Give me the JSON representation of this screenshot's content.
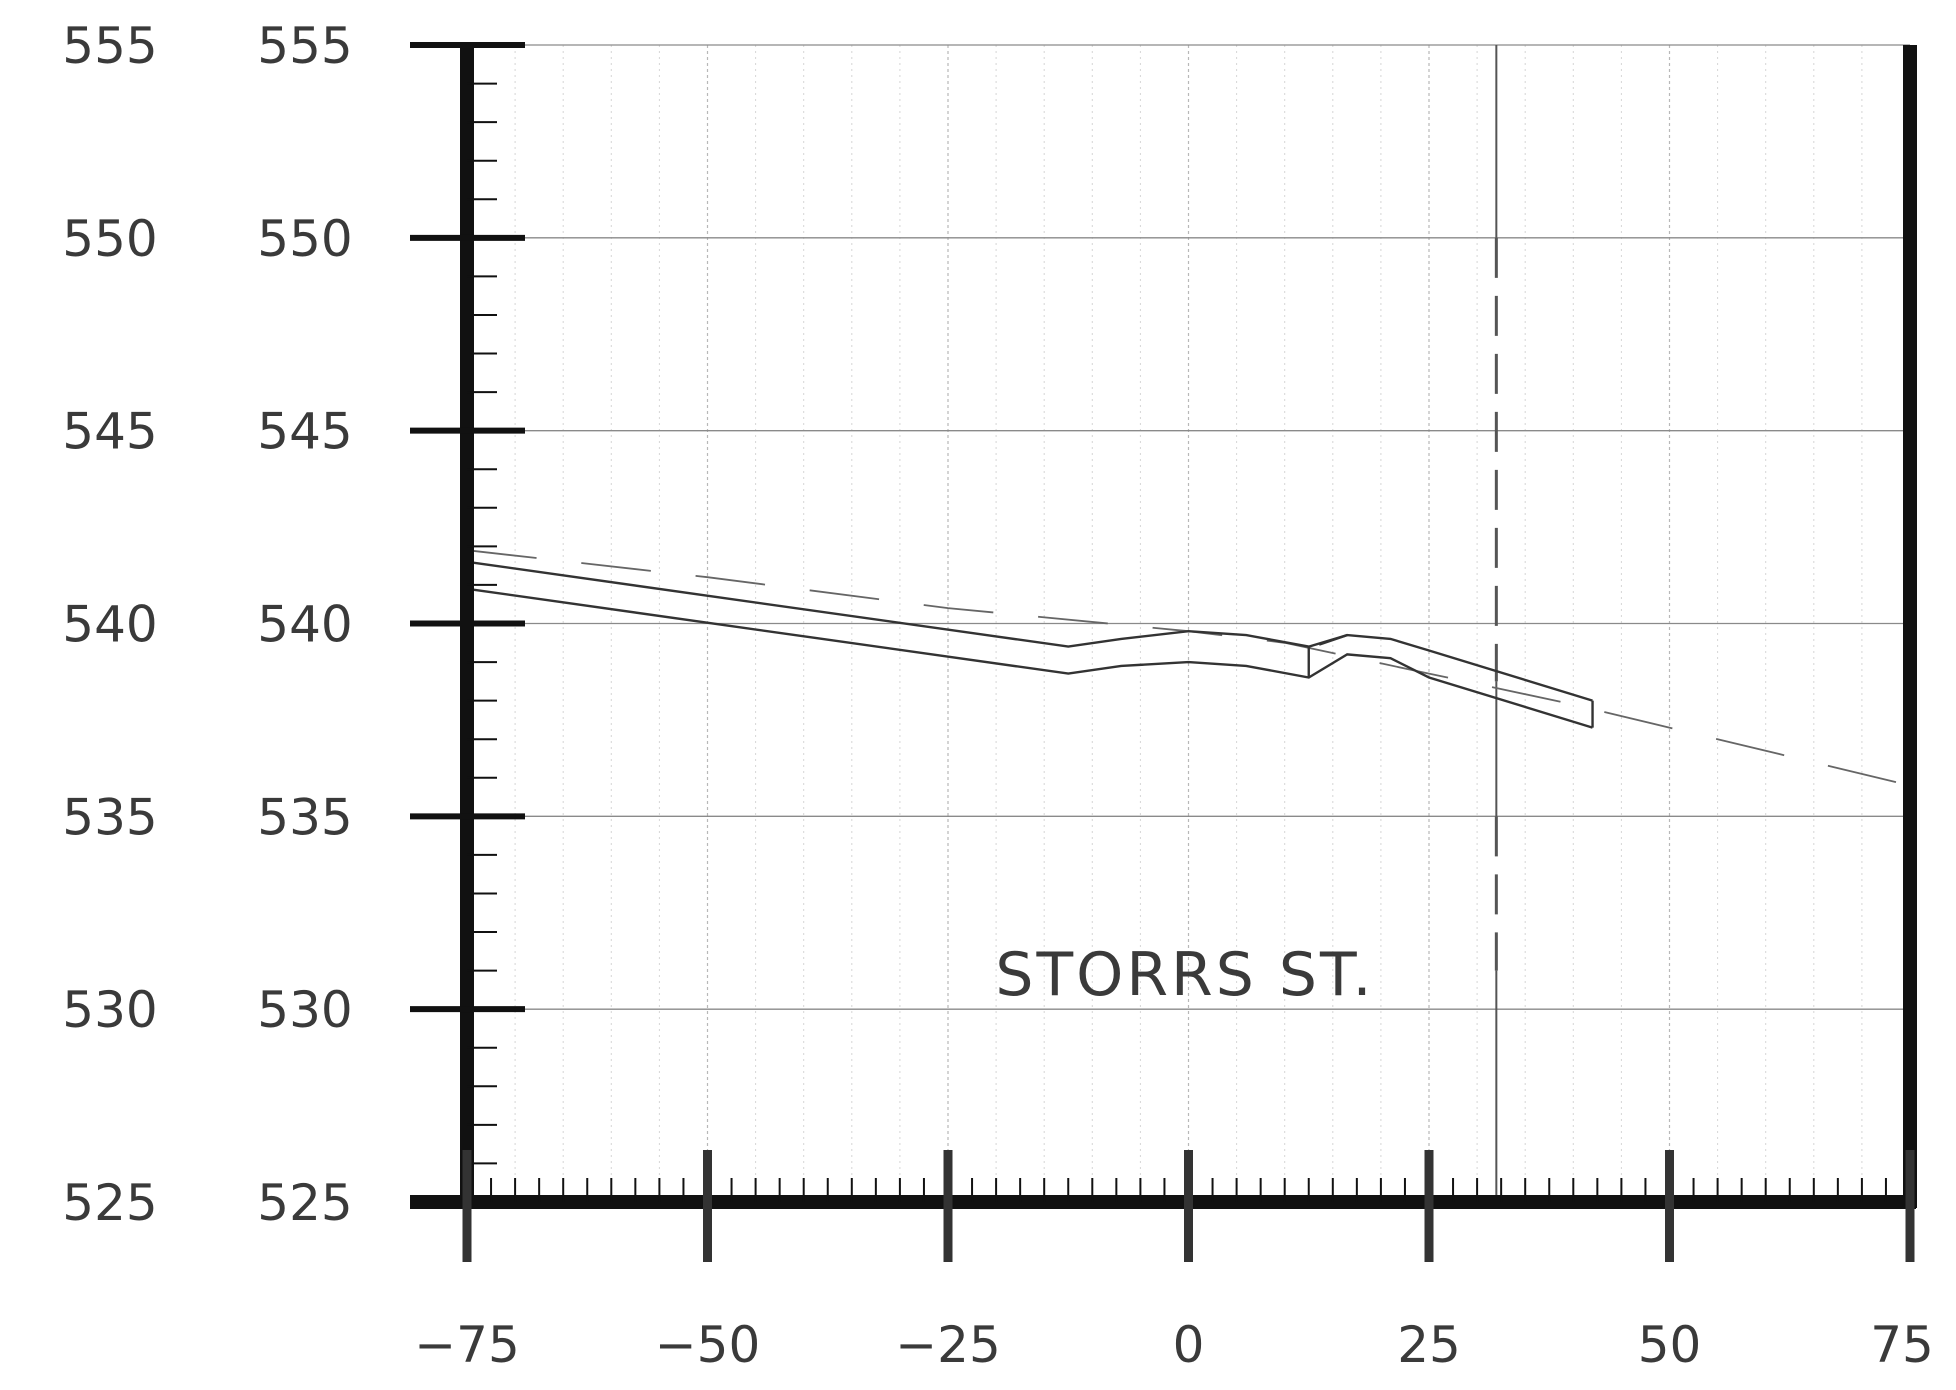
{
  "chart_data": {
    "type": "line",
    "title": "",
    "annotation": "STORRS ST.",
    "xlabel": "",
    "ylabel": "",
    "xlim": [
      -75,
      75
    ],
    "ylim": [
      525,
      555
    ],
    "x_ticks": [
      "-75",
      "-50",
      "-25",
      "0",
      "25",
      "50",
      "75"
    ],
    "y_ticks": [
      "555",
      "550",
      "545",
      "540",
      "535",
      "530",
      "525"
    ],
    "grid": true,
    "reference_line_x": 32,
    "series": [
      {
        "style": "dashed",
        "points": [
          [
            -75,
            541.9
          ],
          [
            -50,
            541.2
          ],
          [
            -25,
            540.4
          ],
          [
            0,
            539.8
          ],
          [
            10,
            539.5
          ],
          [
            25,
            538.7
          ],
          [
            40,
            537.9
          ],
          [
            55,
            537.0
          ],
          [
            75,
            535.8
          ]
        ]
      },
      {
        "style": "solid",
        "points": [
          [
            -75,
            541.6
          ],
          [
            -12.5,
            539.4
          ],
          [
            -7,
            539.6
          ],
          [
            0,
            539.8
          ],
          [
            6,
            539.7
          ],
          [
            12.5,
            539.4
          ],
          [
            16.5,
            539.7
          ],
          [
            21,
            539.6
          ],
          [
            25,
            539.3
          ],
          [
            42,
            538.0
          ]
        ]
      },
      {
        "style": "solid",
        "points": [
          [
            -75,
            540.9
          ],
          [
            -12.5,
            538.7
          ],
          [
            -7,
            538.9
          ],
          [
            0,
            539.0
          ],
          [
            6,
            538.9
          ],
          [
            12.5,
            538.6
          ],
          [
            16.5,
            539.2
          ],
          [
            21,
            539.1
          ],
          [
            25,
            538.6
          ],
          [
            42,
            537.3
          ]
        ]
      }
    ]
  }
}
